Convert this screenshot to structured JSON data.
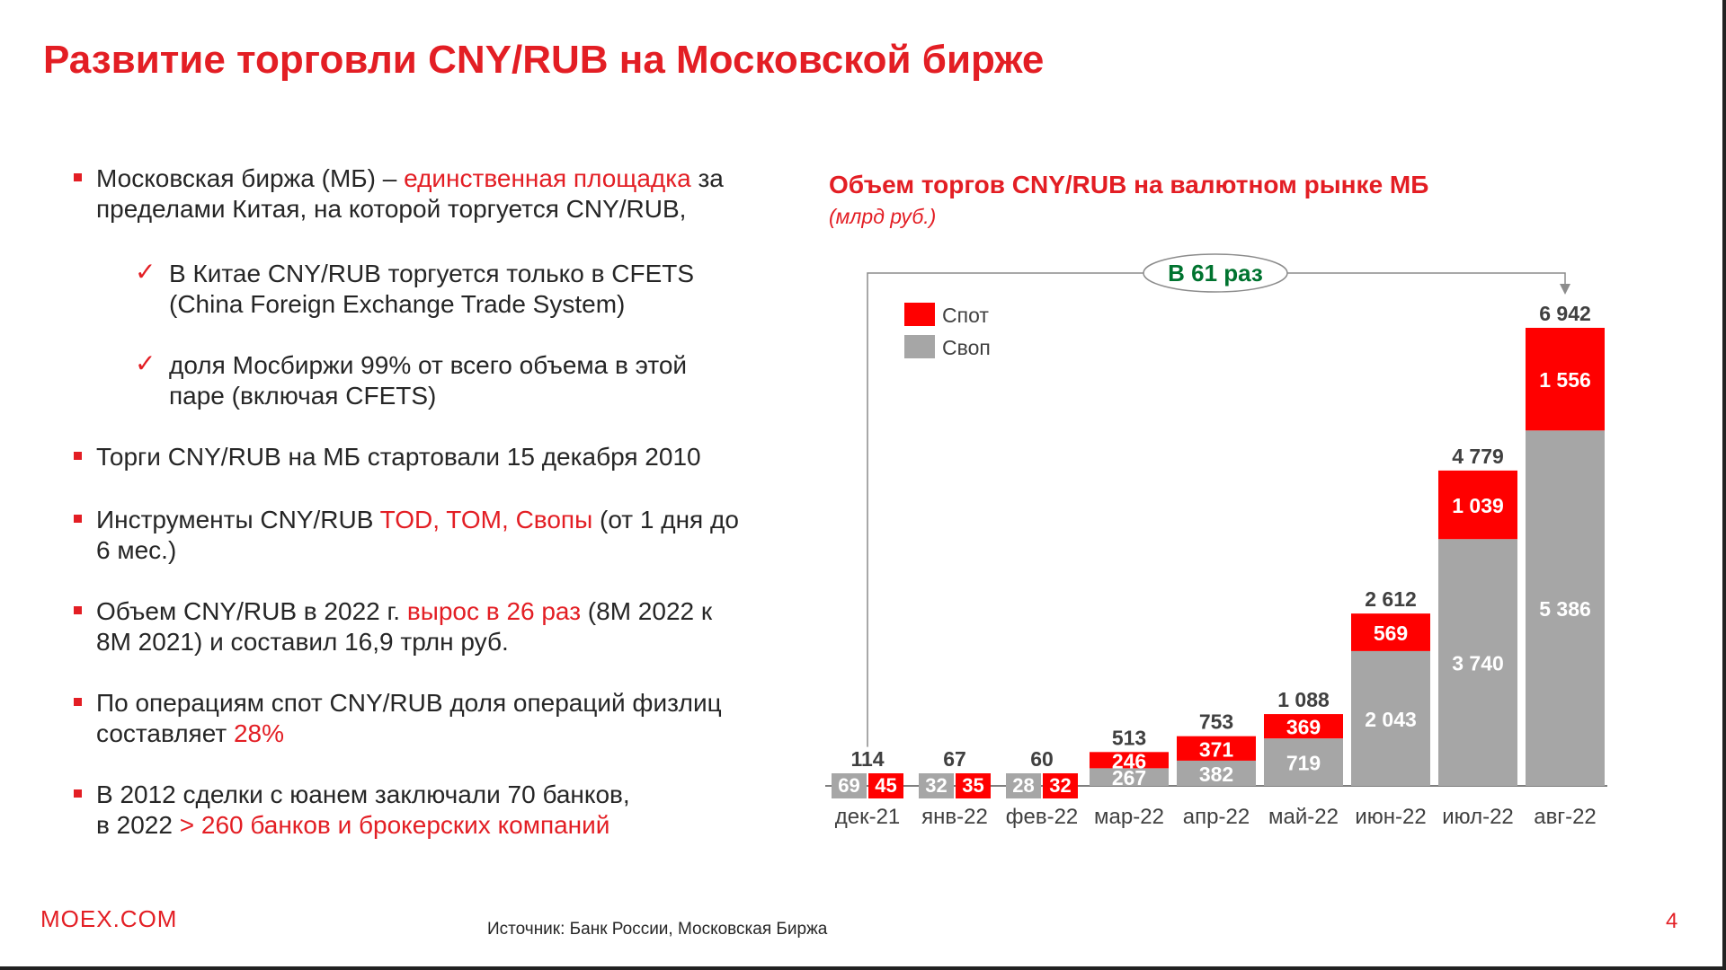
{
  "title": "Развитие торговли CNY/RUB на Московской бирже",
  "bullets": {
    "b1_a": "Московская биржа (МБ) – ",
    "b1_b": "единственная площадка",
    "b1_c": " за пределами Китая, на которой торгуется CNY/RUB,",
    "s1": "В Китае CNY/RUB торгуется только в CFETS (China Foreign Exchange Trade System)",
    "s2": "доля Мосбиржи 99% от всего объема в этой паре (включая CFETS)",
    "b2": "Торги CNY/RUB на МБ стартовали 15 декабря 2010",
    "b3_a": "Инструменты CNY/RUB ",
    "b3_b": "TOD, TOM, Свопы",
    "b3_c": " (от 1 дня до 6 мес.)",
    "b4_a": "Объем CNY/RUB в 2022 г. ",
    "b4_b": "вырос в 26 раз",
    "b4_c": " (8M 2022 к 8M 2021) и составил 16,9 трлн руб.",
    "b5_a": "По операциям спот CNY/RUB доля операций физлиц составляет ",
    "b5_b": "28%",
    "b6_a": "В 2012 сделки с юанем заключали 70 банков,",
    "b6_b": "в 2022 ",
    "b6_c": " > 260 банков и брокерских компаний"
  },
  "checkmark": "✓",
  "footer": {
    "logo": "MOEX.COM",
    "source": "Источник: Банк России, Московская Биржа",
    "page": "4"
  },
  "colors": {
    "accent": "#e31e24",
    "spot": "#ff0000",
    "swap": "#a6a6a6",
    "growth_text": "#00732f"
  },
  "chart_data": {
    "type": "bar",
    "stacked": true,
    "title": "Объем торгов CNY/RUB на валютном рынке МБ",
    "subtitle": "(млрд руб.)",
    "categories": [
      "дек-21",
      "янв-22",
      "фев-22",
      "мар-22",
      "апр-22",
      "май-22",
      "июн-22",
      "июл-22",
      "авг-22"
    ],
    "series": [
      {
        "name": "Своп",
        "values": [
          69,
          32,
          28,
          267,
          382,
          719,
          2043,
          3740,
          5386
        ],
        "labels": [
          "69",
          "32",
          "28",
          "267",
          "382",
          "719",
          "2 043",
          "3 740",
          "5 386"
        ]
      },
      {
        "name": "Спот",
        "values": [
          45,
          35,
          32,
          246,
          371,
          369,
          569,
          1039,
          1556
        ],
        "labels": [
          "45",
          "35",
          "32",
          "246",
          "371",
          "369",
          "569",
          "1 039",
          "1 556"
        ]
      }
    ],
    "totals": [
      114,
      67,
      60,
      513,
      753,
      1088,
      2612,
      4779,
      6942
    ],
    "total_labels": [
      "114",
      "67",
      "60",
      "513",
      "753",
      "1 088",
      "2 612",
      "4 779",
      "6 942"
    ],
    "annotation": "В 61 раз",
    "legend_position": "top-left",
    "grid": false
  }
}
